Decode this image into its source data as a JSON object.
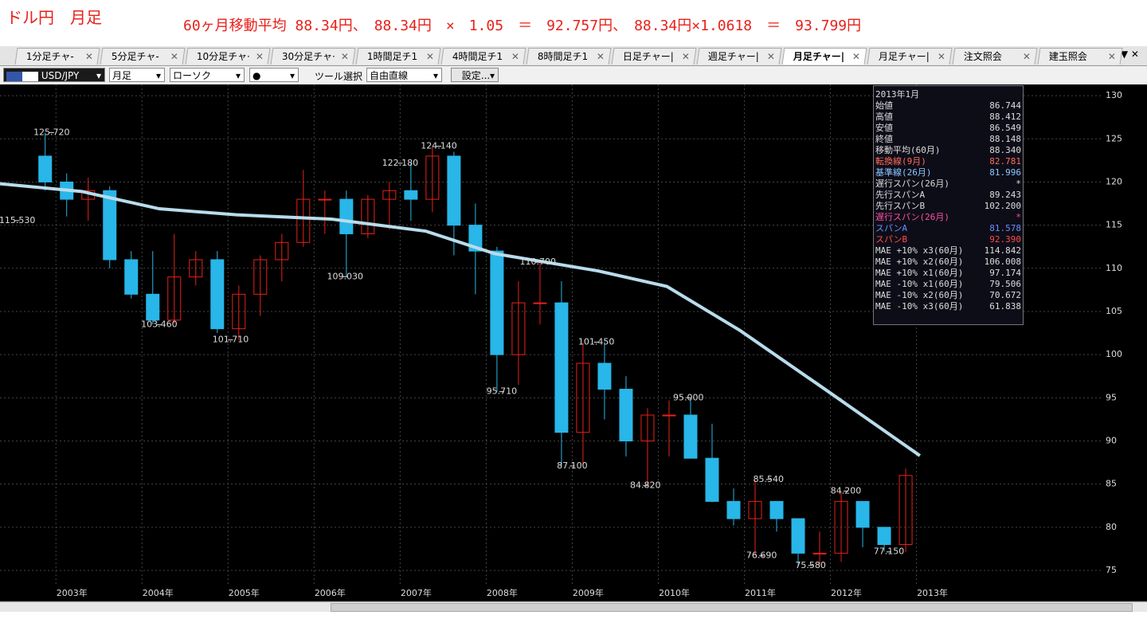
{
  "header": {
    "title": "ドル円　月足",
    "note": "60ヶ月移動平均 88.34円、　88.34円　×　1.05　＝　92.757円、　88.34円×1.0618　＝　93.799円"
  },
  "tabs": [
    "1分足チャ-",
    "5分足チャ-",
    "10分足チャ·",
    "30分足チャ·",
    "1時間足チ1",
    "4時間足チ1",
    "8時間足チ1",
    "日足チャー|",
    "週足チャー|",
    "月足チャー|",
    "月足チャー|",
    "注文照会",
    "建玉照会"
  ],
  "toolbar": {
    "symbol": "USD/JPY",
    "period": "月足",
    "style": "ローソク",
    "tool_label": "ツール選択",
    "tool": "自由直線",
    "settings": "設定..."
  },
  "info_panel": {
    "title": "2013年1月",
    "rows": [
      [
        "始値",
        "86.744"
      ],
      [
        "高値",
        "88.412"
      ],
      [
        "安値",
        "86.549"
      ],
      [
        "終値",
        "88.148"
      ],
      [
        "移動平均(60月)",
        "88.340"
      ],
      [
        "転換線(9月)",
        "82.781"
      ],
      [
        "基準線(26月)",
        "81.996"
      ],
      [
        "遅行スパン(26月)",
        "*"
      ],
      [
        "先行スパンA",
        "89.243"
      ],
      [
        "先行スパンB",
        "102.200"
      ],
      [
        "遅行スパン(26月)",
        "*"
      ],
      [
        "スパンA",
        "81.578"
      ],
      [
        "スパンB",
        "92.390"
      ],
      [
        "MAE +10% x3(60月)",
        "114.842"
      ],
      [
        "MAE +10% x2(60月)",
        "106.008"
      ],
      [
        "MAE +10% x1(60月)",
        "97.174"
      ],
      [
        "MAE -10% x1(60月)",
        "79.506"
      ],
      [
        "MAE -10% x2(60月)",
        "70.672"
      ],
      [
        "MAE -10% x3(60月)",
        "61.838"
      ]
    ]
  },
  "chart_data": {
    "type": "candlestick",
    "xlim": [
      2002.35,
      2015.17
    ],
    "ylim": [
      73.25,
      131.3
    ],
    "xticks": [
      {
        "value": 2003,
        "label": "2003年"
      },
      {
        "value": 2004,
        "label": "2004年"
      },
      {
        "value": 2005,
        "label": "2005年"
      },
      {
        "value": 2006,
        "label": "2006年"
      },
      {
        "value": 2007,
        "label": "2007年"
      },
      {
        "value": 2008,
        "label": "2008年"
      },
      {
        "value": 2009,
        "label": "2009年"
      },
      {
        "value": 2010,
        "label": "2010年"
      },
      {
        "value": 2011,
        "label": "2011年"
      },
      {
        "value": 2012,
        "label": "2012年"
      },
      {
        "value": 2013,
        "label": "2013年"
      }
    ],
    "yticks": [
      75,
      80,
      85,
      90,
      95,
      100,
      105,
      110,
      115,
      120,
      125,
      130
    ],
    "grid": true,
    "up_color": "#e8211a",
    "down_color": "#29b6e8",
    "candles": {
      "x": [
        2002.75,
        2003,
        2003.25,
        2003.5,
        2003.75,
        2004,
        2004.25,
        2004.5,
        2004.75,
        2005,
        2005.25,
        2005.5,
        2005.75,
        2006,
        2006.25,
        2006.5,
        2006.75,
        2007,
        2007.25,
        2007.5,
        2007.75,
        2008,
        2008.25,
        2008.5,
        2008.75,
        2009,
        2009.25,
        2009.5,
        2009.75,
        2010,
        2010.25,
        2010.5,
        2010.75,
        2011,
        2011.25,
        2011.5,
        2011.75,
        2012,
        2012.25,
        2012.5,
        2012.75
      ],
      "open": [
        123,
        120,
        118,
        119,
        111,
        107,
        104,
        109,
        111,
        103,
        107,
        111,
        113,
        118,
        118,
        114,
        118,
        119,
        118,
        123,
        115,
        112,
        100,
        106,
        106,
        91,
        99,
        96,
        90,
        93,
        93,
        88,
        83,
        81,
        83,
        81,
        77,
        77,
        83,
        80,
        78
      ],
      "high": [
        125.7,
        121,
        120.5,
        119.5,
        112,
        112,
        114,
        112,
        112,
        108,
        111.5,
        114,
        121.4,
        119,
        119,
        118.5,
        120,
        122.2,
        124.1,
        123.5,
        117.5,
        112.5,
        108.5,
        110.7,
        108.5,
        101.4,
        101.45,
        97.5,
        93.8,
        94.7,
        95,
        92,
        84.5,
        85.5,
        82.5,
        81,
        79.5,
        84.2,
        83,
        80,
        86.8
      ],
      "low": [
        119,
        116,
        115.5,
        110,
        106.5,
        103.5,
        103.6,
        108,
        102.5,
        101.7,
        104.5,
        108.5,
        112.5,
        114,
        109,
        113.5,
        114.5,
        115.5,
        116.5,
        111.5,
        107,
        95.7,
        96.5,
        103.5,
        87.1,
        87.1,
        92.5,
        88.2,
        84.8,
        88.2,
        88,
        82.9,
        80.2,
        76.7,
        79.5,
        75.6,
        75.6,
        76,
        77.7,
        77.2,
        77.1
      ],
      "close": [
        120,
        118,
        119,
        111,
        107,
        104,
        109,
        111,
        103,
        107,
        111,
        113,
        118,
        118,
        114,
        118,
        119,
        118,
        123,
        115,
        112,
        100,
        106,
        106,
        91,
        99,
        96,
        90,
        93,
        93,
        88,
        83,
        81,
        83,
        81,
        77,
        77,
        83,
        80,
        78,
        86
      ]
    },
    "moving_average": {
      "color": "#b8dcec",
      "x": [
        2002.35,
        2003.3,
        2004.2,
        2005.1,
        2006.2,
        2007.3,
        2008.1,
        2009.3,
        2010.1,
        2010.95,
        2011.95,
        2013.04
      ],
      "values": [
        119.8,
        118.9,
        116.9,
        116.2,
        115.7,
        114.3,
        111.7,
        109.7,
        107.9,
        102.8,
        95.9,
        88.3
      ]
    },
    "extremes": {
      "x": [
        2002.95,
        2002.55,
        2004.2,
        2005.03,
        2006.36,
        2007.0,
        2007.45,
        2008.6,
        2008.18,
        2009.28,
        2009.0,
        2010.35,
        2009.85,
        2011.28,
        2011.2,
        2011.77,
        2012.18,
        2012.68
      ],
      "values": [
        125.72,
        115.53,
        103.46,
        101.71,
        109.03,
        122.18,
        124.14,
        110.7,
        95.71,
        101.45,
        87.1,
        95,
        84.82,
        85.54,
        76.69,
        75.58,
        84.2,
        77.15
      ],
      "value_labels": [
        "125.720",
        "115.530",
        "103.460",
        "101.710",
        "109.030",
        "122.180",
        "124.140",
        "110.700",
        "95.710",
        "101.450",
        "87.100",
        "95.000",
        "84.820",
        "85.540",
        "76.690",
        "75.580",
        "84.200",
        "77.150"
      ]
    }
  }
}
